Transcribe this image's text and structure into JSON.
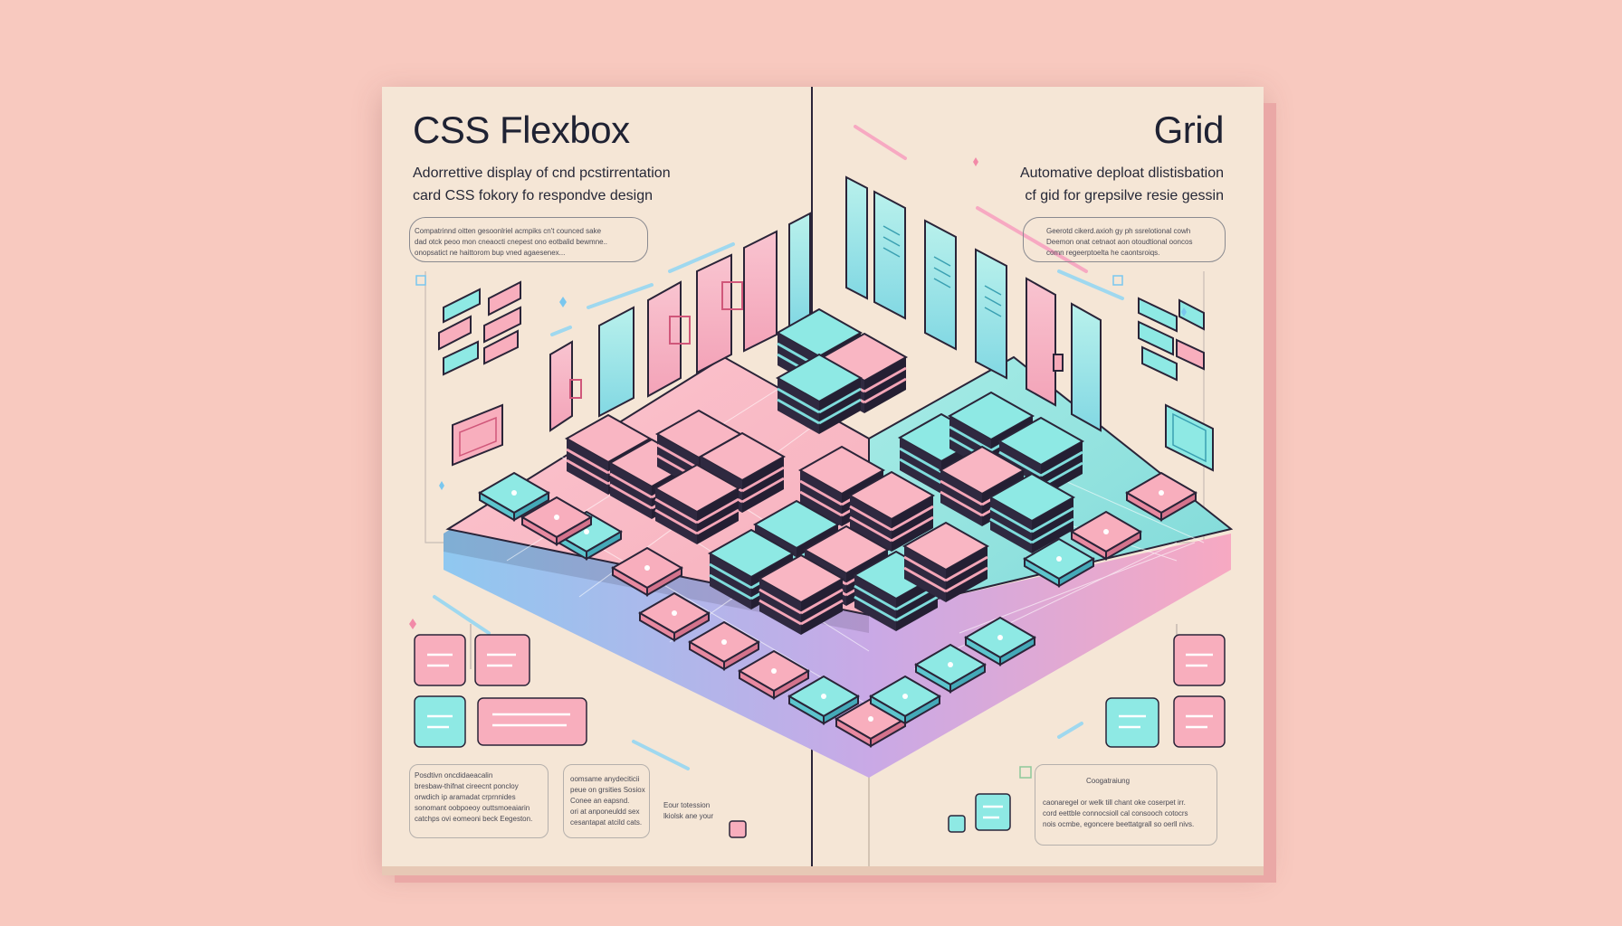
{
  "left": {
    "title": "CSS Flexbox",
    "subtitle_1": "Adorrettive display of cnd pcstirrentation",
    "subtitle_2": "card CSS fokory fo respondve design",
    "blurb": [
      "Compatrinnd oitten gesoonlriel acmpiks cn't counced sake",
      "dad otck peoo mon cneaocti cnepest ono eotbalid bewmne..",
      "onopsatict ne haittorom bup vned agaesenex..."
    ],
    "note_a": [
      "Posdtivn oncdidaeacalin",
      "bresbaw-thifnat cireecnt poncloy",
      "orwdich ip aramadat crprnnides",
      "sonomant oobpoeoy outtsmoeaiarin",
      "catchps ovi eomeoni beck Eegeston."
    ],
    "note_b": [
      "oomsame anydeciticii",
      "peue on grsities Sosiox",
      "Conee an eapsnd.",
      "ori at anponeuldd sex",
      "cesantapat atcild cats."
    ],
    "note_c": [
      "Eour totession",
      "lkiolsk ane your"
    ]
  },
  "right": {
    "title": "Grid",
    "subtitle_1": "Automative deploat dlistisbation",
    "subtitle_2": "cf gid for grepsilve resie gessin",
    "blurb": [
      "Geerotd cikerd.axioh gy ph ssrelotional cowh",
      "Deemon onat cetnaot aon otoudtional ooncos",
      "comn regeerptoelta he caontsroiqs."
    ],
    "note_title": "Coogatraiung",
    "note": [
      "caonaregel or welk till chant oke coserpet irr.",
      "cord eettble connocsioll cal consooch cotocrs",
      "nois ocmbe, egoncere beettatgrall so oerll nivs."
    ]
  },
  "colors": {
    "background": "#f8c9bf",
    "board": "#f5e6d6",
    "pink": "#f7a9b8",
    "pink_light": "#fbd0d6",
    "teal": "#7ee6e3",
    "teal_light": "#bff4f0",
    "blue": "#8ec8ef",
    "outline": "#2a2438"
  },
  "icons": [
    "flexbox-card-cluster-icon",
    "grid-card-cluster-icon",
    "window-icon",
    "sparkle-icon"
  ]
}
